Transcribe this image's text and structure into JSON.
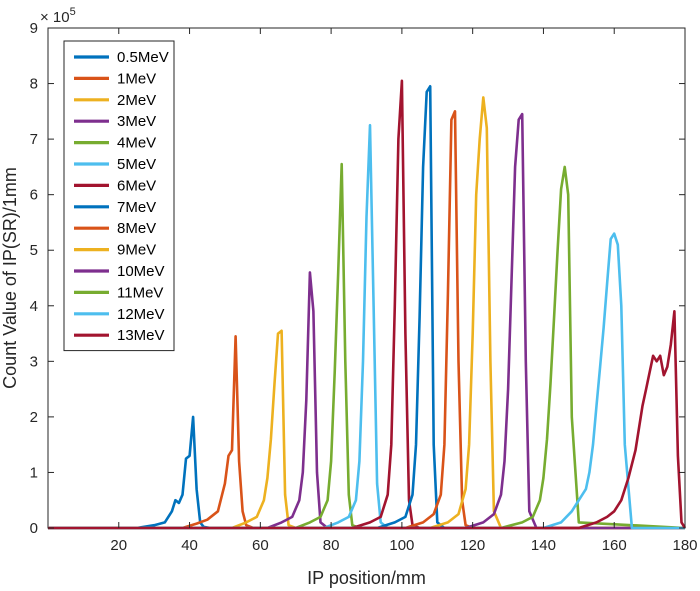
{
  "chart_data": {
    "type": "line",
    "title": "",
    "xlabel": "IP position/mm",
    "ylabel": "Count Value of IP(SR)/1mm",
    "y_multiplier_label": "× 10",
    "y_multiplier_exponent": "5",
    "xlim": [
      0,
      180
    ],
    "ylim": [
      0,
      9
    ],
    "x_ticks": [
      20,
      40,
      60,
      80,
      100,
      120,
      140,
      160,
      180
    ],
    "y_ticks": [
      0,
      1,
      2,
      3,
      4,
      5,
      6,
      7,
      8,
      9
    ],
    "grid": false,
    "legend_position": "top-left",
    "series": [
      {
        "name": "0.5MeV",
        "color": "#0072BD",
        "x": [
          0,
          25,
          30,
          33,
          35,
          36,
          37,
          38,
          39,
          40,
          41,
          42,
          43,
          44,
          46,
          50,
          180
        ],
        "values": [
          0,
          0,
          0.05,
          0.1,
          0.3,
          0.5,
          0.45,
          0.6,
          1.25,
          1.3,
          2.0,
          0.7,
          0.1,
          0.02,
          0,
          0,
          0
        ]
      },
      {
        "name": "1MeV",
        "color": "#D95319",
        "x": [
          0,
          38,
          42,
          45,
          48,
          50,
          51,
          52,
          53,
          54,
          55,
          56,
          58,
          180
        ],
        "values": [
          0,
          0,
          0.08,
          0.15,
          0.3,
          0.8,
          1.3,
          1.4,
          3.45,
          1.2,
          0.3,
          0.05,
          0,
          0
        ]
      },
      {
        "name": "2MeV",
        "color": "#EDB120",
        "x": [
          0,
          52,
          56,
          59,
          61,
          62,
          63,
          64,
          65,
          66,
          67,
          68,
          70,
          180
        ],
        "values": [
          0,
          0,
          0.1,
          0.2,
          0.5,
          0.9,
          1.6,
          2.6,
          3.5,
          3.55,
          0.6,
          0.05,
          0,
          0
        ]
      },
      {
        "name": "3MeV",
        "color": "#7E2F8E",
        "x": [
          0,
          62,
          66,
          69,
          71,
          72,
          73,
          74,
          75,
          76,
          77,
          79,
          180
        ],
        "values": [
          0,
          0,
          0.1,
          0.2,
          0.5,
          1.0,
          2.3,
          4.6,
          3.9,
          1.0,
          0.1,
          0,
          0
        ]
      },
      {
        "name": "4MeV",
        "color": "#77AC30",
        "x": [
          0,
          70,
          74,
          77,
          79,
          80,
          81,
          82,
          83,
          84,
          85,
          86,
          88,
          180
        ],
        "values": [
          0,
          0,
          0.1,
          0.2,
          0.5,
          1.2,
          2.8,
          4.6,
          6.55,
          3.0,
          0.6,
          0.05,
          0,
          0
        ]
      },
      {
        "name": "5MeV",
        "color": "#4DBEEE",
        "x": [
          0,
          78,
          82,
          85,
          87,
          88,
          89,
          90,
          91,
          92,
          93,
          94,
          96,
          180
        ],
        "values": [
          0,
          0,
          0.1,
          0.2,
          0.5,
          1.2,
          3.0,
          5.6,
          7.25,
          4.0,
          0.8,
          0.1,
          0,
          0
        ]
      },
      {
        "name": "6MeV",
        "color": "#A2142F",
        "x": [
          0,
          86,
          91,
          94,
          96,
          97,
          98,
          99,
          100,
          101,
          102,
          103,
          105,
          180
        ],
        "values": [
          0,
          0,
          0.1,
          0.2,
          0.6,
          1.5,
          4.0,
          7.0,
          8.05,
          3.5,
          0.5,
          0.05,
          0,
          0
        ]
      },
      {
        "name": "7MeV",
        "color": "#0072BD",
        "x": [
          0,
          93,
          98,
          101,
          103,
          104,
          105,
          106,
          107,
          108,
          109,
          110,
          112,
          180
        ],
        "values": [
          0,
          0,
          0.1,
          0.2,
          0.6,
          1.5,
          3.8,
          6.5,
          7.85,
          7.95,
          1.5,
          0.1,
          0,
          0
        ]
      },
      {
        "name": "8MeV",
        "color": "#D95319",
        "x": [
          0,
          101,
          106,
          109,
          111,
          112,
          113,
          114,
          115,
          116,
          117,
          118,
          120,
          180
        ],
        "values": [
          0,
          0,
          0.1,
          0.25,
          0.6,
          1.5,
          4.2,
          7.35,
          7.5,
          3.0,
          0.5,
          0.05,
          0,
          0
        ]
      },
      {
        "name": "9MeV",
        "color": "#EDB120",
        "x": [
          0,
          108,
          113,
          116,
          118,
          119,
          120,
          121,
          122,
          123,
          124,
          125,
          126,
          128,
          180
        ],
        "values": [
          0,
          0,
          0.1,
          0.25,
          0.7,
          1.5,
          3.5,
          6.0,
          7.0,
          7.75,
          7.2,
          3.0,
          0.3,
          0,
          0
        ]
      },
      {
        "name": "10MeV",
        "color": "#7E2F8E",
        "x": [
          0,
          118,
          123,
          126,
          128,
          129,
          130,
          131,
          132,
          133,
          134,
          135,
          136,
          138,
          180
        ],
        "values": [
          0,
          0,
          0.1,
          0.25,
          0.6,
          1.2,
          2.5,
          4.5,
          6.5,
          7.35,
          7.45,
          3.0,
          0.3,
          0,
          0
        ]
      },
      {
        "name": "11MeV",
        "color": "#77AC30",
        "x": [
          0,
          128,
          134,
          137,
          139,
          140,
          141,
          142,
          143,
          144,
          145,
          146,
          147,
          148,
          150,
          180
        ],
        "values": [
          0,
          0,
          0.1,
          0.2,
          0.5,
          0.9,
          1.6,
          2.6,
          3.8,
          5.0,
          6.1,
          6.5,
          6.0,
          2.0,
          0.1,
          0
        ]
      },
      {
        "name": "12MeV",
        "color": "#4DBEEE",
        "x": [
          0,
          140,
          145,
          148,
          150,
          152,
          153,
          154,
          155,
          156,
          157,
          158,
          159,
          160,
          161,
          162,
          163,
          165,
          180
        ],
        "values": [
          0,
          0,
          0.1,
          0.3,
          0.5,
          0.7,
          1.0,
          1.5,
          2.2,
          2.9,
          3.6,
          4.4,
          5.2,
          5.3,
          5.1,
          4.0,
          1.5,
          0,
          0
        ]
      },
      {
        "name": "13MeV",
        "color": "#A2142F",
        "x": [
          0,
          150,
          155,
          158,
          160,
          162,
          164,
          166,
          167,
          168,
          169,
          170,
          171,
          172,
          173,
          174,
          175,
          176,
          177,
          178,
          179,
          180
        ],
        "values": [
          0,
          0,
          0.1,
          0.2,
          0.3,
          0.5,
          0.9,
          1.4,
          1.8,
          2.2,
          2.5,
          2.8,
          3.1,
          3.0,
          3.1,
          2.75,
          2.9,
          3.3,
          3.9,
          1.3,
          0.1,
          0
        ]
      }
    ]
  }
}
